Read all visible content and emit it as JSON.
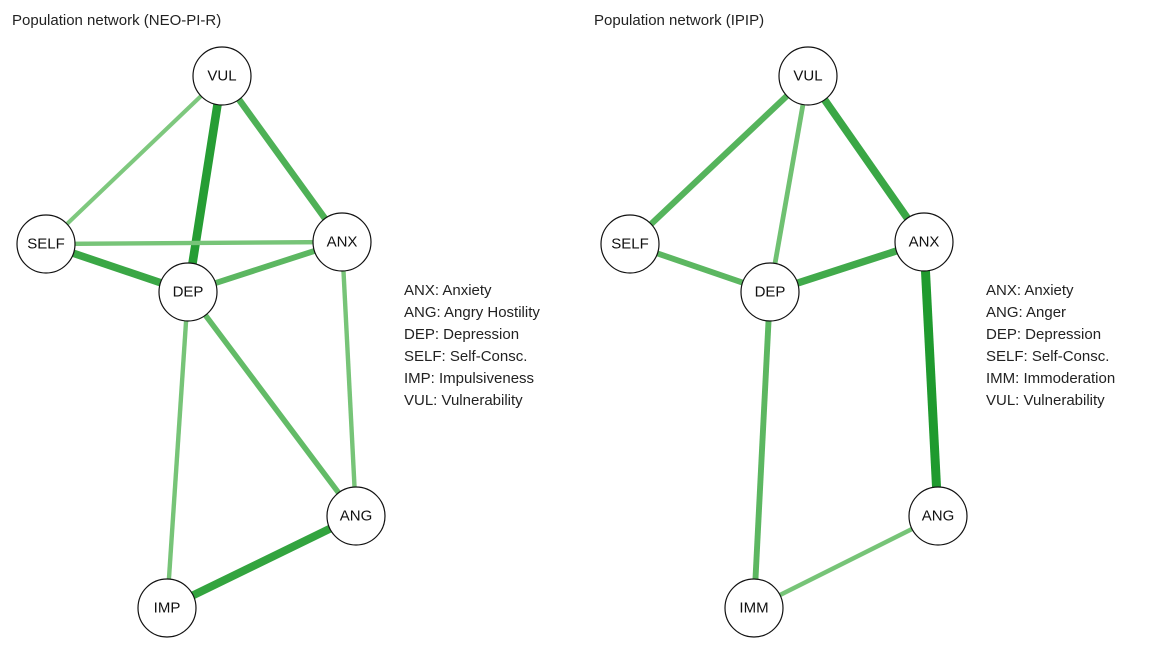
{
  "panels": [
    {
      "title": "Population network (NEO-PI-R)",
      "nodes": [
        {
          "id": "VUL",
          "label": "VUL"
        },
        {
          "id": "SELF",
          "label": "SELF"
        },
        {
          "id": "ANX",
          "label": "ANX"
        },
        {
          "id": "DEP",
          "label": "DEP"
        },
        {
          "id": "ANG",
          "label": "ANG"
        },
        {
          "id": "IMP",
          "label": "IMP"
        }
      ],
      "edges": [
        {
          "from": "VUL",
          "to": "SELF",
          "strength": 0.3
        },
        {
          "from": "VUL",
          "to": "DEP",
          "strength": 0.95
        },
        {
          "from": "VUL",
          "to": "ANX",
          "strength": 0.65
        },
        {
          "from": "SELF",
          "to": "ANX",
          "strength": 0.35
        },
        {
          "from": "SELF",
          "to": "DEP",
          "strength": 0.8
        },
        {
          "from": "DEP",
          "to": "ANX",
          "strength": 0.55
        },
        {
          "from": "DEP",
          "to": "ANG",
          "strength": 0.5
        },
        {
          "from": "DEP",
          "to": "IMP",
          "strength": 0.35
        },
        {
          "from": "ANX",
          "to": "ANG",
          "strength": 0.35
        },
        {
          "from": "ANG",
          "to": "IMP",
          "strength": 0.85
        }
      ],
      "legend": [
        "ANX: Anxiety",
        "ANG: Angry Hostility",
        "DEP: Depression",
        "SELF: Self-Consc.",
        "IMP: Impulsiveness",
        "VUL: Vulnerability"
      ]
    },
    {
      "title": "Population network (IPIP)",
      "nodes": [
        {
          "id": "VUL",
          "label": "VUL"
        },
        {
          "id": "SELF",
          "label": "SELF"
        },
        {
          "id": "ANX",
          "label": "ANX"
        },
        {
          "id": "DEP",
          "label": "DEP"
        },
        {
          "id": "ANG",
          "label": "ANG"
        },
        {
          "id": "IMM",
          "label": "IMM"
        }
      ],
      "edges": [
        {
          "from": "VUL",
          "to": "SELF",
          "strength": 0.6
        },
        {
          "from": "VUL",
          "to": "DEP",
          "strength": 0.4
        },
        {
          "from": "VUL",
          "to": "ANX",
          "strength": 0.8
        },
        {
          "from": "SELF",
          "to": "DEP",
          "strength": 0.55
        },
        {
          "from": "DEP",
          "to": "ANX",
          "strength": 0.75
        },
        {
          "from": "DEP",
          "to": "IMM",
          "strength": 0.55
        },
        {
          "from": "ANX",
          "to": "ANG",
          "strength": 1.0
        },
        {
          "from": "ANG",
          "to": "IMM",
          "strength": 0.35
        }
      ],
      "legend": [
        "ANX: Anxiety",
        "ANG: Anger",
        "DEP: Depression",
        "SELF: Self-Consc.",
        "IMM: Immoderation",
        "VUL: Vulnerability"
      ]
    }
  ],
  "colors": {
    "edge_weak": "#a6dba0",
    "edge_strong": "#1f9a2e",
    "node_fill": "#ffffff",
    "node_stroke": "#111111"
  }
}
